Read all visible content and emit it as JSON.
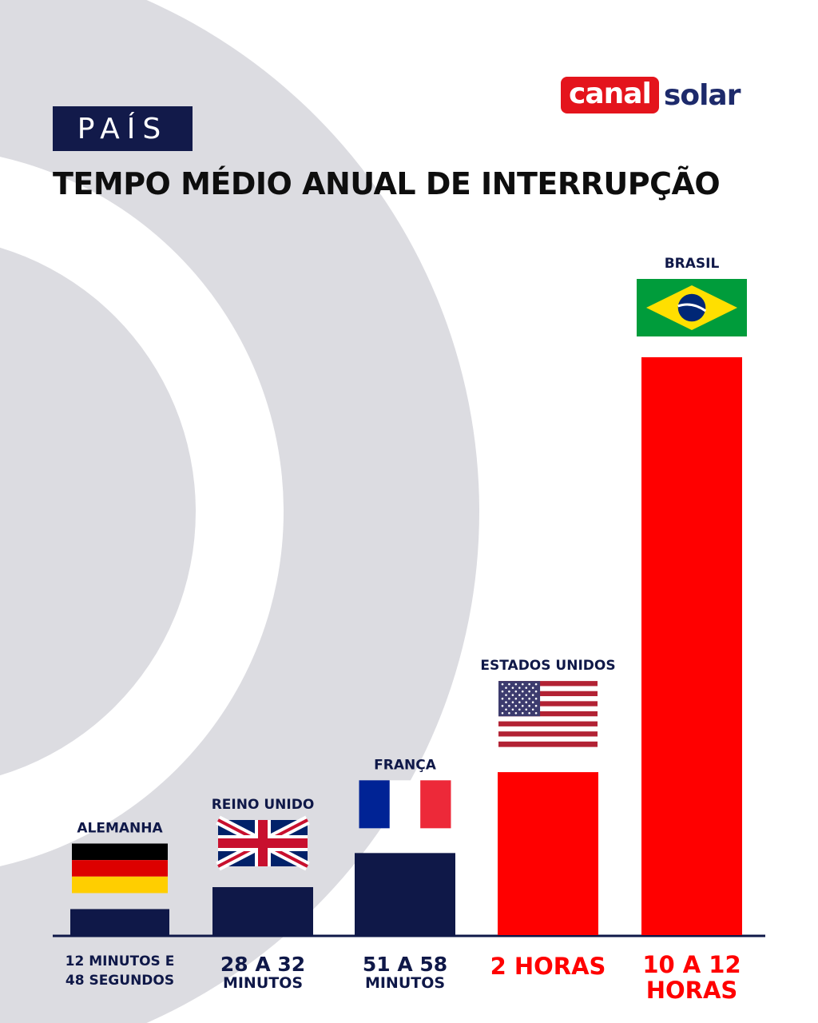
{
  "brand": {
    "logo_part1": "canal",
    "logo_part2": "solar"
  },
  "header": {
    "tag": "PAÍS",
    "title": "TEMPO MÉDIO ANUAL DE INTERRUPÇÃO"
  },
  "colors": {
    "navy": "#0f1848",
    "red": "#ff0000",
    "bg_arc": "#dcdce1",
    "logo_red": "#e4141c",
    "logo_navy": "#1d2a6b"
  },
  "chart_data": {
    "type": "bar",
    "title": "TEMPO MÉDIO ANUAL DE INTERRUPÇÃO",
    "categories": [
      "ALEMANHA",
      "REINO UNIDO",
      "FRANÇA",
      "ESTADOS UNIDOS",
      "BRASIL"
    ],
    "value_labels": [
      [
        "12 MINUTOS E",
        "48 SEGUNDOS"
      ],
      [
        "28 A 32",
        "MINUTOS"
      ],
      [
        "51 A 58",
        "MINUTOS"
      ],
      [
        "2 HORAS"
      ],
      [
        "10 A 12",
        "HORAS"
      ]
    ],
    "bar_colors": [
      "#0f1848",
      "#0f1848",
      "#0f1848",
      "#ff0000",
      "#ff0000"
    ],
    "flags": [
      "germany-flag-icon",
      "uk-flag-icon",
      "france-flag-icon",
      "usa-flag-icon",
      "brazil-flag-icon"
    ],
    "bar_heights_relative": [
      0.045,
      0.083,
      0.142,
      0.282,
      1.0
    ],
    "xlabel": "",
    "ylabel": "",
    "grid": false,
    "legend": "none"
  }
}
